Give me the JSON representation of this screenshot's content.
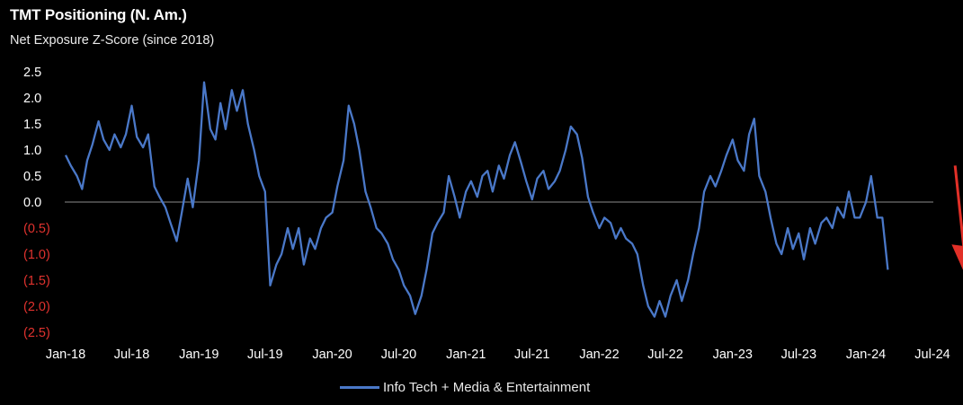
{
  "chart_data": {
    "type": "line",
    "title": "TMT Positioning (N. Am.)",
    "subtitle": "Net Exposure Z-Score (since 2018)",
    "xlabel": "",
    "ylabel": "",
    "ylim": [
      -2.5,
      2.5
    ],
    "yticks": [
      {
        "value": 2.5,
        "label": "2.5"
      },
      {
        "value": 2.0,
        "label": "2.0"
      },
      {
        "value": 1.5,
        "label": "1.5"
      },
      {
        "value": 1.0,
        "label": "1.0"
      },
      {
        "value": 0.5,
        "label": "0.5"
      },
      {
        "value": 0.0,
        "label": "0.0"
      },
      {
        "value": -0.5,
        "label": "(0.5)"
      },
      {
        "value": -1.0,
        "label": "(1.0)"
      },
      {
        "value": -1.5,
        "label": "(1.5)"
      },
      {
        "value": -2.0,
        "label": "(2.0)"
      },
      {
        "value": -2.5,
        "label": "(2.5)"
      }
    ],
    "xticks": [
      {
        "value": "2018-01",
        "label": "Jan-18"
      },
      {
        "value": "2018-07",
        "label": "Jul-18"
      },
      {
        "value": "2019-01",
        "label": "Jan-19"
      },
      {
        "value": "2019-07",
        "label": "Jul-19"
      },
      {
        "value": "2020-01",
        "label": "Jan-20"
      },
      {
        "value": "2020-07",
        "label": "Jul-20"
      },
      {
        "value": "2021-01",
        "label": "Jan-21"
      },
      {
        "value": "2021-07",
        "label": "Jul-21"
      },
      {
        "value": "2022-01",
        "label": "Jan-22"
      },
      {
        "value": "2022-07",
        "label": "Jul-22"
      },
      {
        "value": "2023-01",
        "label": "Jan-23"
      },
      {
        "value": "2023-07",
        "label": "Jul-23"
      },
      {
        "value": "2024-01",
        "label": "Jan-24"
      },
      {
        "value": "2024-07",
        "label": "Jul-24"
      }
    ],
    "grid": false,
    "legend_position": "bottom-center",
    "colors": {
      "series": "#4a78c8",
      "negative_label": "#e0322e",
      "arrow": "#e23028",
      "zero_line": "#8a8a8a"
    },
    "annotations": [
      {
        "type": "arrow",
        "direction": "down",
        "color": "#e23028",
        "from": [
          "2024-09",
          0.7
        ],
        "to": [
          "2024-10",
          -1.4
        ]
      }
    ],
    "series": [
      {
        "name": "Info Tech + Media & Entertainment",
        "points": [
          [
            "2018-01",
            0.9
          ],
          [
            "2018-01-15",
            0.7
          ],
          [
            "2018-02",
            0.5
          ],
          [
            "2018-02-15",
            0.25
          ],
          [
            "2018-03",
            0.8
          ],
          [
            "2018-03-15",
            1.1
          ],
          [
            "2018-04",
            1.55
          ],
          [
            "2018-04-15",
            1.2
          ],
          [
            "2018-05",
            1.0
          ],
          [
            "2018-05-15",
            1.3
          ],
          [
            "2018-06",
            1.05
          ],
          [
            "2018-06-15",
            1.3
          ],
          [
            "2018-07",
            1.85
          ],
          [
            "2018-07-15",
            1.25
          ],
          [
            "2018-08",
            1.05
          ],
          [
            "2018-08-15",
            1.3
          ],
          [
            "2018-09",
            0.3
          ],
          [
            "2018-09-15",
            0.1
          ],
          [
            "2018-10",
            -0.1
          ],
          [
            "2018-10-15",
            -0.4
          ],
          [
            "2018-11",
            -0.75
          ],
          [
            "2018-11-15",
            -0.2
          ],
          [
            "2018-12",
            0.45
          ],
          [
            "2018-12-15",
            -0.1
          ],
          [
            "2019-01",
            0.8
          ],
          [
            "2019-01-15",
            2.3
          ],
          [
            "2019-02",
            1.4
          ],
          [
            "2019-02-15",
            1.2
          ],
          [
            "2019-03",
            1.9
          ],
          [
            "2019-03-15",
            1.4
          ],
          [
            "2019-04",
            2.15
          ],
          [
            "2019-04-15",
            1.75
          ],
          [
            "2019-05",
            2.15
          ],
          [
            "2019-05-15",
            1.5
          ],
          [
            "2019-06",
            1.0
          ],
          [
            "2019-06-15",
            0.5
          ],
          [
            "2019-07",
            0.2
          ],
          [
            "2019-07-15",
            -1.6
          ],
          [
            "2019-08",
            -1.2
          ],
          [
            "2019-08-15",
            -1.0
          ],
          [
            "2019-09",
            -0.5
          ],
          [
            "2019-09-15",
            -0.9
          ],
          [
            "2019-10",
            -0.5
          ],
          [
            "2019-10-15",
            -1.2
          ],
          [
            "2019-11",
            -0.7
          ],
          [
            "2019-11-15",
            -0.9
          ],
          [
            "2019-12",
            -0.5
          ],
          [
            "2019-12-15",
            -0.3
          ],
          [
            "2020-01",
            -0.2
          ],
          [
            "2020-01-15",
            0.3
          ],
          [
            "2020-02",
            0.8
          ],
          [
            "2020-02-15",
            1.85
          ],
          [
            "2020-03",
            1.5
          ],
          [
            "2020-03-15",
            1.0
          ],
          [
            "2020-04",
            0.2
          ],
          [
            "2020-04-15",
            -0.1
          ],
          [
            "2020-05",
            -0.5
          ],
          [
            "2020-05-15",
            -0.6
          ],
          [
            "2020-06",
            -0.8
          ],
          [
            "2020-06-15",
            -1.1
          ],
          [
            "2020-07",
            -1.3
          ],
          [
            "2020-07-15",
            -1.6
          ],
          [
            "2020-08",
            -1.8
          ],
          [
            "2020-08-15",
            -2.15
          ],
          [
            "2020-09",
            -1.8
          ],
          [
            "2020-09-15",
            -1.3
          ],
          [
            "2020-10",
            -0.6
          ],
          [
            "2020-10-15",
            -0.4
          ],
          [
            "2020-11",
            -0.2
          ],
          [
            "2020-11-15",
            0.5
          ],
          [
            "2020-12",
            0.1
          ],
          [
            "2020-12-15",
            -0.3
          ],
          [
            "2021-01",
            0.2
          ],
          [
            "2021-01-15",
            0.4
          ],
          [
            "2021-02",
            0.1
          ],
          [
            "2021-02-15",
            0.5
          ],
          [
            "2021-03",
            0.6
          ],
          [
            "2021-03-15",
            0.2
          ],
          [
            "2021-04",
            0.7
          ],
          [
            "2021-04-15",
            0.45
          ],
          [
            "2021-05",
            0.9
          ],
          [
            "2021-05-15",
            1.15
          ],
          [
            "2021-06",
            0.75
          ],
          [
            "2021-06-15",
            0.4
          ],
          [
            "2021-07",
            0.05
          ],
          [
            "2021-07-15",
            0.45
          ],
          [
            "2021-08",
            0.6
          ],
          [
            "2021-08-15",
            0.25
          ],
          [
            "2021-09",
            0.4
          ],
          [
            "2021-09-15",
            0.6
          ],
          [
            "2021-10",
            1.0
          ],
          [
            "2021-10-15",
            1.45
          ],
          [
            "2021-11",
            1.3
          ],
          [
            "2021-11-15",
            0.85
          ],
          [
            "2021-12",
            0.1
          ],
          [
            "2021-12-15",
            -0.2
          ],
          [
            "2022-01",
            -0.5
          ],
          [
            "2022-01-15",
            -0.3
          ],
          [
            "2022-02",
            -0.4
          ],
          [
            "2022-02-15",
            -0.7
          ],
          [
            "2022-03",
            -0.5
          ],
          [
            "2022-03-15",
            -0.7
          ],
          [
            "2022-04",
            -0.8
          ],
          [
            "2022-04-15",
            -1.0
          ],
          [
            "2022-05",
            -1.6
          ],
          [
            "2022-05-15",
            -2.0
          ],
          [
            "2022-06",
            -2.2
          ],
          [
            "2022-06-15",
            -1.9
          ],
          [
            "2022-07",
            -2.2
          ],
          [
            "2022-07-15",
            -1.8
          ],
          [
            "2022-08",
            -1.5
          ],
          [
            "2022-08-15",
            -1.9
          ],
          [
            "2022-09",
            -1.5
          ],
          [
            "2022-09-15",
            -1.0
          ],
          [
            "2022-10",
            -0.5
          ],
          [
            "2022-10-15",
            0.2
          ],
          [
            "2022-11",
            0.5
          ],
          [
            "2022-11-15",
            0.3
          ],
          [
            "2022-12",
            0.6
          ],
          [
            "2022-12-15",
            0.9
          ],
          [
            "2023-01",
            1.2
          ],
          [
            "2023-01-15",
            0.8
          ],
          [
            "2023-02",
            0.6
          ],
          [
            "2023-02-15",
            1.3
          ],
          [
            "2023-03",
            1.6
          ],
          [
            "2023-03-15",
            0.5
          ],
          [
            "2023-04",
            0.2
          ],
          [
            "2023-04-15",
            -0.3
          ],
          [
            "2023-05",
            -0.8
          ],
          [
            "2023-05-15",
            -1.0
          ],
          [
            "2023-06",
            -0.5
          ],
          [
            "2023-06-15",
            -0.9
          ],
          [
            "2023-07",
            -0.6
          ],
          [
            "2023-07-15",
            -1.1
          ],
          [
            "2023-08",
            -0.5
          ],
          [
            "2023-08-15",
            -0.8
          ],
          [
            "2023-09",
            -0.4
          ],
          [
            "2023-09-15",
            -0.3
          ],
          [
            "2023-10",
            -0.5
          ],
          [
            "2023-10-15",
            -0.1
          ],
          [
            "2023-11",
            -0.3
          ],
          [
            "2023-11-15",
            0.2
          ],
          [
            "2023-12",
            -0.3
          ],
          [
            "2023-12-15",
            -0.3
          ],
          [
            "2024-01",
            0.0
          ],
          [
            "2024-01-15",
            0.5
          ],
          [
            "2024-02",
            -0.3
          ],
          [
            "2024-02-15",
            -0.3
          ],
          [
            "2024-03",
            -1.3
          ]
        ]
      }
    ]
  },
  "legend": {
    "label": "Info Tech + Media & Entertainment"
  }
}
